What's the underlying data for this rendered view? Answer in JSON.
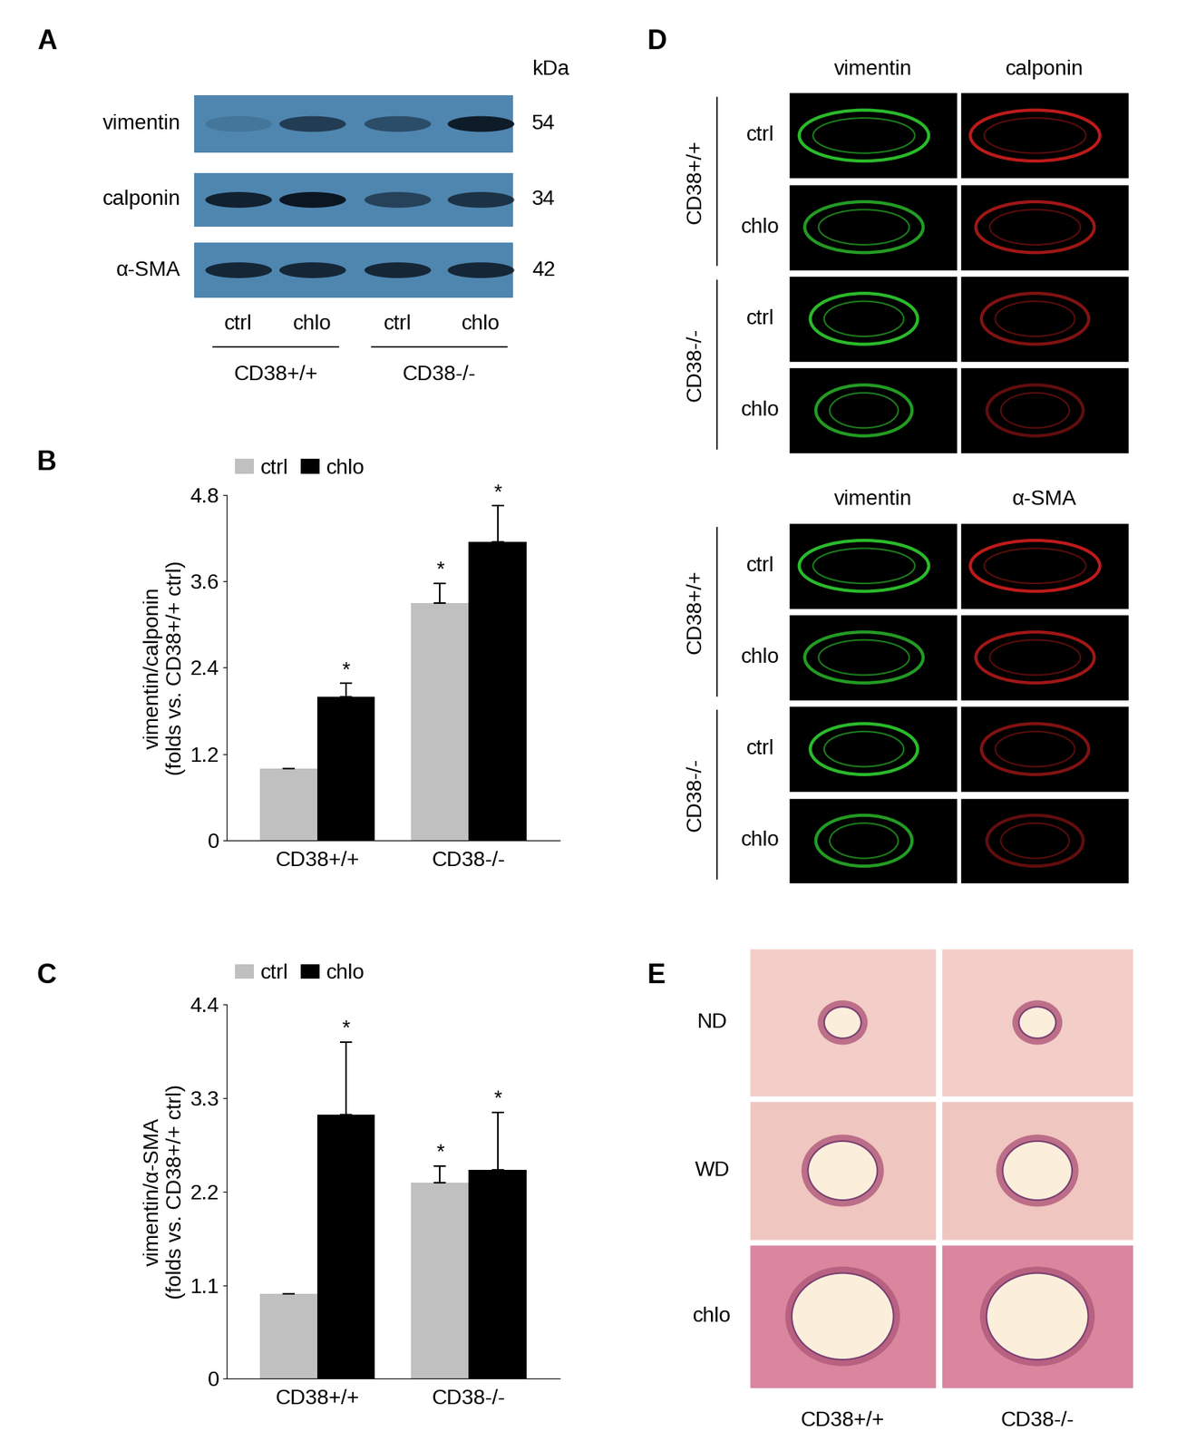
{
  "panel_A": {
    "label": "A",
    "unit_header": "kDa",
    "color": "#4f86b0",
    "lanes": [
      "ctrl",
      "chlo",
      "ctrl",
      "chlo"
    ],
    "groups": [
      "CD38+/+",
      "CD38-/-"
    ],
    "rows": [
      {
        "name": "vimentin",
        "kDa": 54,
        "band_intensity": [
          0.15,
          0.65,
          0.5,
          0.95
        ]
      },
      {
        "name": "calponin",
        "kDa": 34,
        "band_intensity": [
          0.9,
          1.0,
          0.6,
          0.75
        ]
      },
      {
        "name": "α-SMA",
        "kDa": 42,
        "band_intensity": [
          0.85,
          0.85,
          0.85,
          0.85
        ]
      }
    ]
  },
  "chart_data": [
    {
      "panel_label": "B",
      "type": "bar",
      "categories": [
        "CD38+/+",
        "CD38-/-"
      ],
      "y_label": "vimentin/calponin\n(folds vs. CD38+/+ ctrl)",
      "ylim": [
        0,
        4.8
      ],
      "yticks": [
        0,
        1.2,
        2.4,
        3.6,
        4.8
      ],
      "legend": "upper left",
      "series": [
        {
          "name": "ctrl",
          "color": "#c0c0c0",
          "values": [
            1.0,
            3.3
          ],
          "error": [
            0,
            0.27
          ],
          "significance": [
            null,
            "*"
          ]
        },
        {
          "name": "chlo",
          "color": "#000000",
          "values": [
            2.0,
            4.15
          ],
          "error": [
            0.18,
            0.5
          ],
          "significance": [
            "*",
            "*"
          ]
        }
      ]
    },
    {
      "panel_label": "C",
      "type": "bar",
      "categories": [
        "CD38+/+",
        "CD38-/-"
      ],
      "y_label": "vimentin/α-SMA\n(folds vs. CD38+/+ ctrl)",
      "ylim": [
        0,
        4.4
      ],
      "yticks": [
        0,
        1.1,
        2.2,
        3.3,
        4.4
      ],
      "legend": "upper left",
      "series": [
        {
          "name": "ctrl",
          "color": "#c0c0c0",
          "values": [
            1.0,
            2.3
          ],
          "error": [
            0,
            0.2
          ],
          "significance": [
            null,
            "*"
          ]
        },
        {
          "name": "chlo",
          "color": "#000000",
          "values": [
            3.1,
            2.45
          ],
          "error": [
            0.85,
            0.68
          ],
          "significance": [
            "*",
            "*"
          ]
        }
      ]
    }
  ],
  "panel_D": {
    "label": "D",
    "blocks": [
      {
        "channels": [
          {
            "name": "vimentin",
            "color": "#2fd02f"
          },
          {
            "name": "calponin",
            "color": "#ff2424"
          }
        ],
        "groups": [
          {
            "name": "CD38+/+",
            "rows": [
              "ctrl",
              "chlo"
            ]
          },
          {
            "name": "CD38-/-",
            "rows": [
              "ctrl",
              "chlo"
            ]
          }
        ]
      },
      {
        "channels": [
          {
            "name": "vimentin",
            "color": "#2fd02f"
          },
          {
            "name": "α-SMA",
            "color": "#ff2424"
          }
        ],
        "groups": [
          {
            "name": "CD38+/+",
            "rows": [
              "ctrl",
              "chlo"
            ]
          },
          {
            "name": "CD38-/-",
            "rows": [
              "ctrl",
              "chlo"
            ]
          }
        ]
      }
    ]
  },
  "panel_E": {
    "label": "E",
    "rows": [
      "ND",
      "WD",
      "chlo"
    ],
    "columns": [
      "CD38+/+",
      "CD38-/-"
    ]
  }
}
